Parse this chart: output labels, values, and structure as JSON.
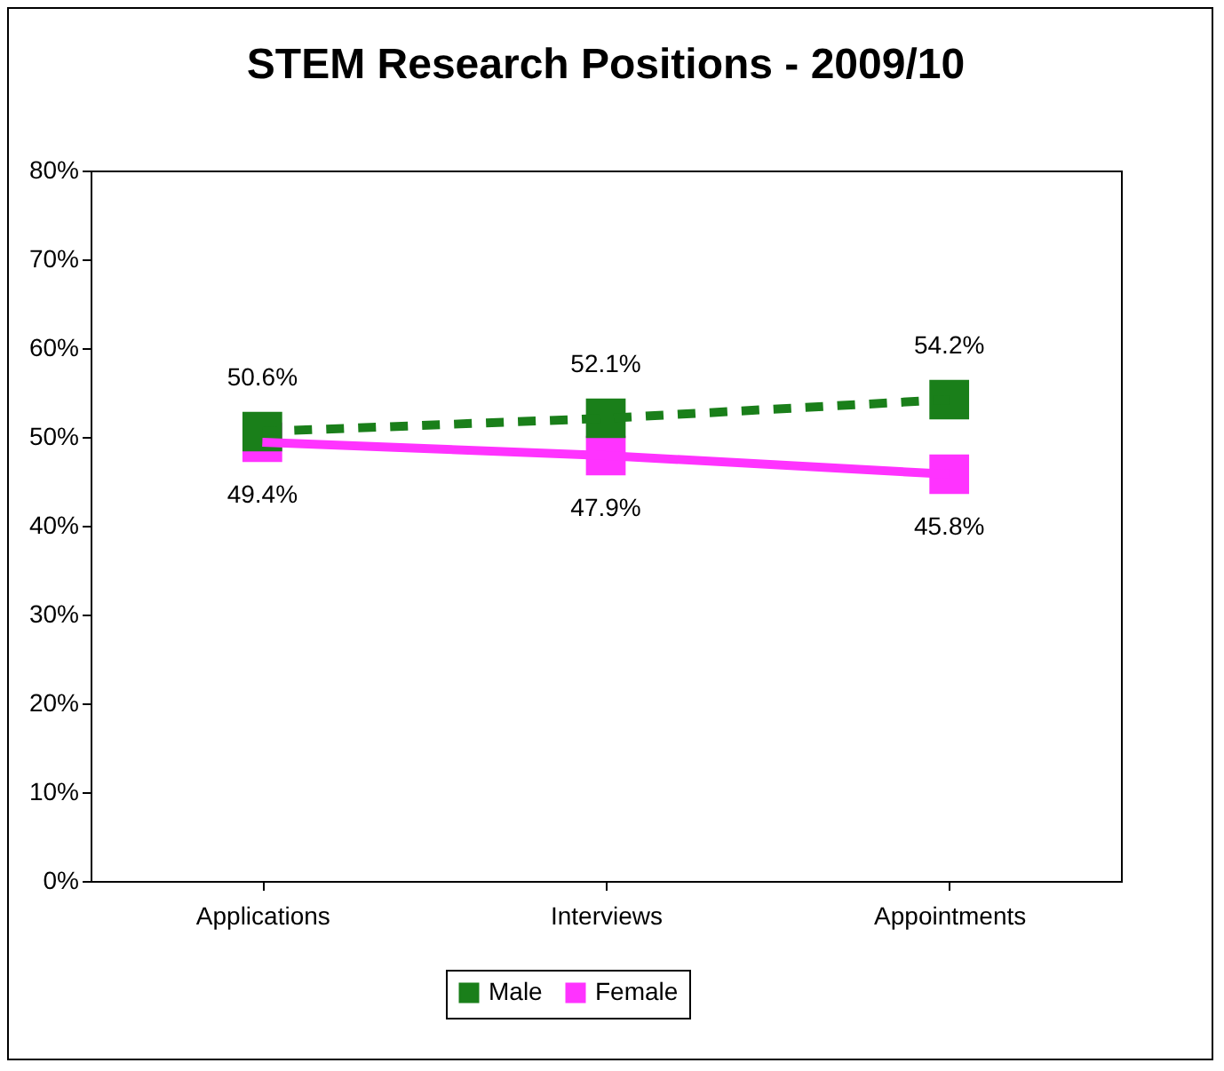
{
  "chart_data": {
    "type": "line",
    "title": "STEM Research Positions - 2009/10",
    "categories": [
      "Applications",
      "Interviews",
      "Appointments"
    ],
    "series": [
      {
        "name": "Male",
        "color": "#1a7f1a",
        "values": [
          50.6,
          52.1,
          54.2
        ],
        "value_labels": [
          "50.6%",
          "52.1%",
          "54.2%"
        ],
        "line_style": "dashed"
      },
      {
        "name": "Female",
        "color": "#ff33ff",
        "values": [
          49.4,
          47.9,
          45.8
        ],
        "value_labels": [
          "49.4%",
          "47.9%",
          "45.8%"
        ],
        "line_style": "solid"
      }
    ],
    "ylim": [
      0,
      80
    ],
    "yticks": [
      {
        "value": 0,
        "label": "0%"
      },
      {
        "value": 10,
        "label": "10%"
      },
      {
        "value": 20,
        "label": "20%"
      },
      {
        "value": 30,
        "label": "30%"
      },
      {
        "value": 40,
        "label": "40%"
      },
      {
        "value": 50,
        "label": "50%"
      },
      {
        "value": 60,
        "label": "60%"
      },
      {
        "value": 70,
        "label": "70%"
      },
      {
        "value": 80,
        "label": "80%"
      }
    ],
    "grid": false,
    "legend": "bottom",
    "marker": "square"
  }
}
